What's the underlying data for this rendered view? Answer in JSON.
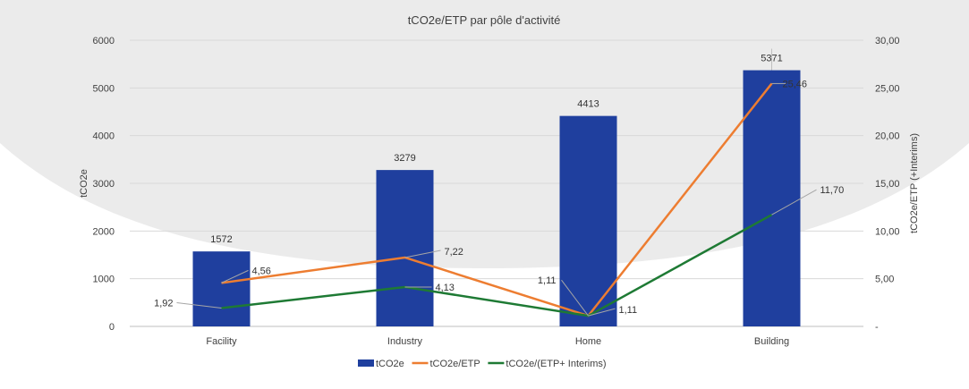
{
  "chart_data": {
    "type": "bar",
    "title": "tCO2e/ETP par pôle d'activité",
    "categories": [
      "Facility",
      "Industry",
      "Home",
      "Building"
    ],
    "ylabel": "tCO2e",
    "y2label": "tCO2e/ETP (+Interims)",
    "ylim": [
      0,
      6000
    ],
    "y2lim": [
      0,
      30
    ],
    "yticks": [
      "0",
      "1000",
      "2000",
      "3000",
      "4000",
      "5000",
      "6000"
    ],
    "y2ticks": [
      "-",
      "5,00",
      "10,00",
      "15,00",
      "20,00",
      "25,00",
      "30,00"
    ],
    "series": [
      {
        "name": "tCO2e",
        "type": "bar",
        "axis": "left",
        "color": "#1f3f9e",
        "values": [
          1572,
          3279,
          4413,
          5371
        ],
        "labels": [
          "1572",
          "3279",
          "4413",
          "5371"
        ]
      },
      {
        "name": "tCO2e/ETP",
        "type": "line",
        "axis": "right",
        "color": "#ed7d31",
        "values": [
          4.56,
          7.22,
          1.11,
          25.46
        ],
        "labels": [
          "4,56",
          "7,22",
          "1,11",
          "25,46"
        ]
      },
      {
        "name": "tCO2e/(ETP+ Interims)",
        "type": "line",
        "axis": "right",
        "color": "#1e7a34",
        "values": [
          1.92,
          4.13,
          1.11,
          11.7
        ],
        "labels": [
          "1,92",
          "4,13",
          "1,11",
          "11,70"
        ]
      }
    ],
    "legend_position": "bottom"
  }
}
